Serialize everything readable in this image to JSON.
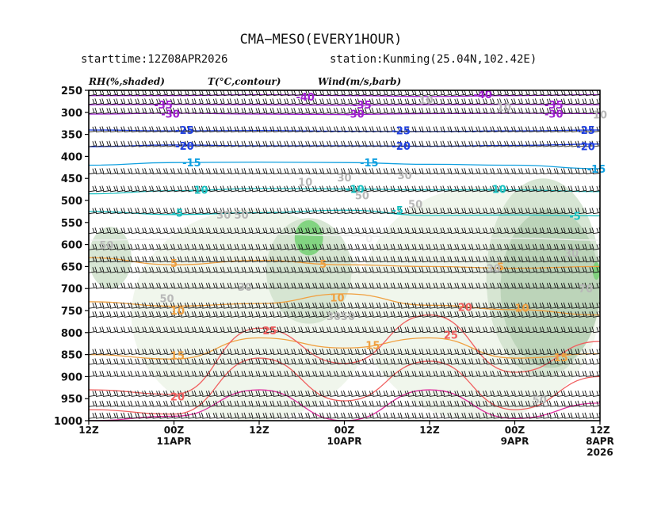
{
  "header": {
    "title": "CMA−MESO(EVERY1HOUR)",
    "starttime": "starttime:12Z08APR2026",
    "station": "station:Kunming(25.04N,102.42E)"
  },
  "legend": {
    "rh": "RH(%,shaded)",
    "temp": "T(°C,contour)",
    "wind": "Wind(m/s,barb)"
  },
  "chart_data": {
    "type": "heatmap",
    "title": "CMA−MESO(EVERY1HOUR)",
    "xlabel": "",
    "ylabel": "",
    "y_axis": {
      "ticks": [
        250,
        300,
        350,
        400,
        450,
        500,
        550,
        600,
        650,
        700,
        750,
        800,
        850,
        900,
        950,
        1000
      ],
      "ylim": [
        250,
        1000
      ]
    },
    "x_axis": {
      "hours_range": [
        0,
        72
      ],
      "ticks": [
        {
          "h": 0,
          "label": "12Z",
          "sub": "",
          "sub2": ""
        },
        {
          "h": 12,
          "label": "00Z",
          "sub": "11APR",
          "sub2": ""
        },
        {
          "h": 24,
          "label": "12Z",
          "sub": "",
          "sub2": ""
        },
        {
          "h": 36,
          "label": "00Z",
          "sub": "10APR",
          "sub2": ""
        },
        {
          "h": 48,
          "label": "12Z",
          "sub": "",
          "sub2": ""
        },
        {
          "h": 60,
          "label": "00Z",
          "sub": "9APR",
          "sub2": ""
        },
        {
          "h": 72,
          "label": "12Z",
          "sub": "8APR",
          "sub2": "2026"
        }
      ]
    },
    "rh_shading": [
      {
        "level": 60,
        "color": "#eef5ea",
        "hours": [
          6,
          40
        ],
        "p": [
          520,
          1000
        ]
      },
      {
        "level": 60,
        "color": "#eef5ea",
        "hours": [
          38,
          72
        ],
        "p": [
          470,
          1000
        ]
      },
      {
        "level": 70,
        "color": "#d3e3cf",
        "hours": [
          0,
          6
        ],
        "p": [
          560,
          700
        ]
      },
      {
        "level": 70,
        "color": "#d3e3cf",
        "hours": [
          56,
          72
        ],
        "p": [
          450,
          900
        ]
      },
      {
        "level": 70,
        "color": "#d3e3cf",
        "hours": [
          25,
          37
        ],
        "p": [
          540,
          780
        ]
      },
      {
        "level": 80,
        "color": "#b9d2b6",
        "hours": [
          58,
          72
        ],
        "p": [
          520,
          880
        ]
      },
      {
        "level": 90,
        "color": "#79d278",
        "hours": [
          29,
          33
        ],
        "p": [
          545,
          625
        ]
      },
      {
        "level": 90,
        "color": "#79d278",
        "hours": [
          71,
          72
        ],
        "p": [
          640,
          680
        ]
      }
    ],
    "temperature_contours": [
      {
        "value": -40,
        "label": "-40",
        "color": "#a020d0",
        "p": [
          262,
          262,
          260,
          262,
          264,
          262,
          260
        ]
      },
      {
        "value": -35,
        "label": "-35",
        "color": "#a020d0",
        "p": [
          283,
          282,
          283,
          284,
          283,
          282,
          283
        ]
      },
      {
        "value": -30,
        "label": "-30",
        "color": "#a020d0",
        "p": [
          304,
          302,
          304,
          305,
          303,
          302,
          303
        ]
      },
      {
        "value": -25,
        "label": "-25",
        "color": "#2040e0",
        "p": [
          340,
          342,
          341,
          343,
          344,
          342,
          340
        ]
      },
      {
        "value": -20,
        "label": "-20",
        "color": "#2040e0",
        "p": [
          378,
          374,
          376,
          376,
          377,
          375,
          372
        ]
      },
      {
        "value": -15,
        "label": "-15",
        "color": "#10a0e0",
        "p": [
          420,
          414,
          413,
          414,
          418,
          420,
          428
        ]
      },
      {
        "value": -10,
        "label": "-10",
        "color": "#18c0c0",
        "p": [
          485,
          478,
          473,
          474,
          476,
          476,
          480
        ]
      },
      {
        "value": -5,
        "label": "-5",
        "color": "#18c0c0",
        "p": [
          525,
          532,
          528,
          522,
          534,
          533,
          535
        ]
      },
      {
        "value": 0,
        "label": "0",
        "color": "#f0f0f0",
        "p": [
          590,
          588,
          576,
          580,
          584,
          586,
          590
        ]
      },
      {
        "value": 5,
        "label": "5",
        "color": "#f0a040",
        "p": [
          630,
          646,
          636,
          646,
          650,
          654,
          650
        ]
      },
      {
        "value": 10,
        "label": "10",
        "color": "#f0a040",
        "p": [
          730,
          740,
          734,
          712,
          738,
          748,
          760
        ]
      },
      {
        "value": 15,
        "label": "15",
        "color": "#f0a040",
        "p": [
          850,
          860,
          812,
          835,
          812,
          858,
          848
        ]
      },
      {
        "value": 20,
        "label": "20",
        "color": "#f06060",
        "p": [
          930,
          940,
          790,
          870,
          760,
          890,
          820
        ]
      },
      {
        "value": 25,
        "label": "25",
        "color": "#f06060",
        "p": [
          975,
          985,
          858,
          955,
          865,
          975,
          900
        ]
      },
      {
        "value": 30,
        "label": "30",
        "color": "#e030a0",
        "p": [
          1000,
          990,
          930,
          1000,
          930,
          995,
          960
        ]
      }
    ],
    "contour_labels": [
      {
        "text": "-40",
        "h": 30.5,
        "p": 264,
        "color": "#a020d0"
      },
      {
        "text": "-40",
        "h": 55.5,
        "p": 259,
        "color": "#a020d0"
      },
      {
        "text": "-35",
        "h": 10.5,
        "p": 282,
        "color": "#a020d0"
      },
      {
        "text": "-35",
        "h": 38.5,
        "p": 282,
        "color": "#a020d0"
      },
      {
        "text": "-35",
        "h": 65.5,
        "p": 282,
        "color": "#a020d0"
      },
      {
        "text": "-30",
        "h": 11.5,
        "p": 303,
        "color": "#a020d0"
      },
      {
        "text": "-30",
        "h": 37.5,
        "p": 303,
        "color": "#a020d0"
      },
      {
        "text": "-30",
        "h": 65.5,
        "p": 303,
        "color": "#a020d0"
      },
      {
        "text": "-25",
        "h": 13.5,
        "p": 340,
        "color": "#2040e0"
      },
      {
        "text": "-25",
        "h": 44.0,
        "p": 341,
        "color": "#2040e0"
      },
      {
        "text": "-25",
        "h": 70.0,
        "p": 340,
        "color": "#2040e0"
      },
      {
        "text": "-20",
        "h": 13.5,
        "p": 376,
        "color": "#2040e0"
      },
      {
        "text": "-20",
        "h": 44.0,
        "p": 376,
        "color": "#2040e0"
      },
      {
        "text": "-20",
        "h": 70.0,
        "p": 377,
        "color": "#2040e0"
      },
      {
        "text": "-15",
        "h": 14.5,
        "p": 414,
        "color": "#10a0e0"
      },
      {
        "text": "-15",
        "h": 39.5,
        "p": 414,
        "color": "#10a0e0"
      },
      {
        "text": "-15",
        "h": 71.5,
        "p": 428,
        "color": "#10a0e0"
      },
      {
        "text": "-10",
        "h": 15.5,
        "p": 476,
        "color": "#18c0c0"
      },
      {
        "text": "-10",
        "h": 37.5,
        "p": 474,
        "color": "#18c0c0"
      },
      {
        "text": "-10",
        "h": 57.5,
        "p": 474,
        "color": "#18c0c0"
      },
      {
        "text": "-5",
        "h": 12.5,
        "p": 528,
        "color": "#18c0c0"
      },
      {
        "text": "-5",
        "h": 43.5,
        "p": 522,
        "color": "#18c0c0"
      },
      {
        "text": "-5",
        "h": 68.5,
        "p": 535,
        "color": "#18c0c0"
      },
      {
        "text": "0",
        "h": 39.5,
        "p": 586,
        "color": "#f0f0f0"
      },
      {
        "text": "5",
        "h": 12.0,
        "p": 642,
        "color": "#f0a040"
      },
      {
        "text": "5",
        "h": 33.0,
        "p": 644,
        "color": "#f0a040"
      },
      {
        "text": "5",
        "h": 58.0,
        "p": 650,
        "color": "#f0a040"
      },
      {
        "text": "10",
        "h": 12.5,
        "p": 750,
        "color": "#f0a040"
      },
      {
        "text": "10",
        "h": 35.0,
        "p": 720,
        "color": "#f0a040"
      },
      {
        "text": "10",
        "h": 61.0,
        "p": 744,
        "color": "#f0a040"
      },
      {
        "text": "15",
        "h": 12.5,
        "p": 852,
        "color": "#f0a040"
      },
      {
        "text": "15",
        "h": 40.0,
        "p": 828,
        "color": "#f0a040"
      },
      {
        "text": "15",
        "h": 66.5,
        "p": 856,
        "color": "#f0a040"
      },
      {
        "text": "20",
        "h": 12.5,
        "p": 945,
        "color": "#f06060"
      },
      {
        "text": "20",
        "h": 53.0,
        "p": 742,
        "color": "#f06060"
      },
      {
        "text": "25",
        "h": 25.5,
        "p": 795,
        "color": "#f06060"
      },
      {
        "text": "25",
        "h": 51.0,
        "p": 805,
        "color": "#f06060"
      },
      {
        "text": "10",
        "h": 47.5,
        "p": 272,
        "color": "#b8b8b8"
      },
      {
        "text": "10",
        "h": 58.5,
        "p": 288,
        "color": "#b8b8b8"
      },
      {
        "text": "10",
        "h": 72.0,
        "p": 305,
        "color": "#b8b8b8"
      },
      {
        "text": "10",
        "h": 30.5,
        "p": 458,
        "color": "#b8b8b8"
      },
      {
        "text": "30",
        "h": 36.0,
        "p": 448,
        "color": "#b8b8b8"
      },
      {
        "text": "30",
        "h": 44.5,
        "p": 442,
        "color": "#b8b8b8"
      },
      {
        "text": "30",
        "h": 19.0,
        "p": 532,
        "color": "#b8b8b8"
      },
      {
        "text": "50",
        "h": 21.5,
        "p": 532,
        "color": "#b8b8b8"
      },
      {
        "text": "50",
        "h": 38.5,
        "p": 488,
        "color": "#b8b8b8"
      },
      {
        "text": "50",
        "h": 46.0,
        "p": 508,
        "color": "#b8b8b8"
      },
      {
        "text": "30",
        "h": 68.0,
        "p": 620,
        "color": "#b8b8b8"
      },
      {
        "text": "30",
        "h": 57.0,
        "p": 654,
        "color": "#b8b8b8"
      },
      {
        "text": "30",
        "h": 22.0,
        "p": 696,
        "color": "#b8b8b8"
      },
      {
        "text": "50",
        "h": 11.0,
        "p": 722,
        "color": "#b8b8b8"
      },
      {
        "text": "30",
        "h": 34.5,
        "p": 763,
        "color": "#b8b8b8"
      },
      {
        "text": "50",
        "h": 36.5,
        "p": 763,
        "color": "#b8b8b8"
      },
      {
        "text": "50",
        "h": 2.5,
        "p": 601,
        "color": "#b8b8b8"
      },
      {
        "text": "70",
        "h": 70.0,
        "p": 700,
        "color": "#b8b8b8"
      },
      {
        "text": "50",
        "h": 63.5,
        "p": 952,
        "color": "#b8b8b8"
      }
    ],
    "wind_barbs": {
      "levels": [
        262,
        282,
        303,
        345,
        378,
        440,
        480,
        530,
        575,
        612,
        640,
        664,
        700,
        745,
        765,
        800,
        850,
        872,
        900,
        945,
        968,
        995
      ],
      "hour_step": 1,
      "direction": "westerly"
    }
  }
}
